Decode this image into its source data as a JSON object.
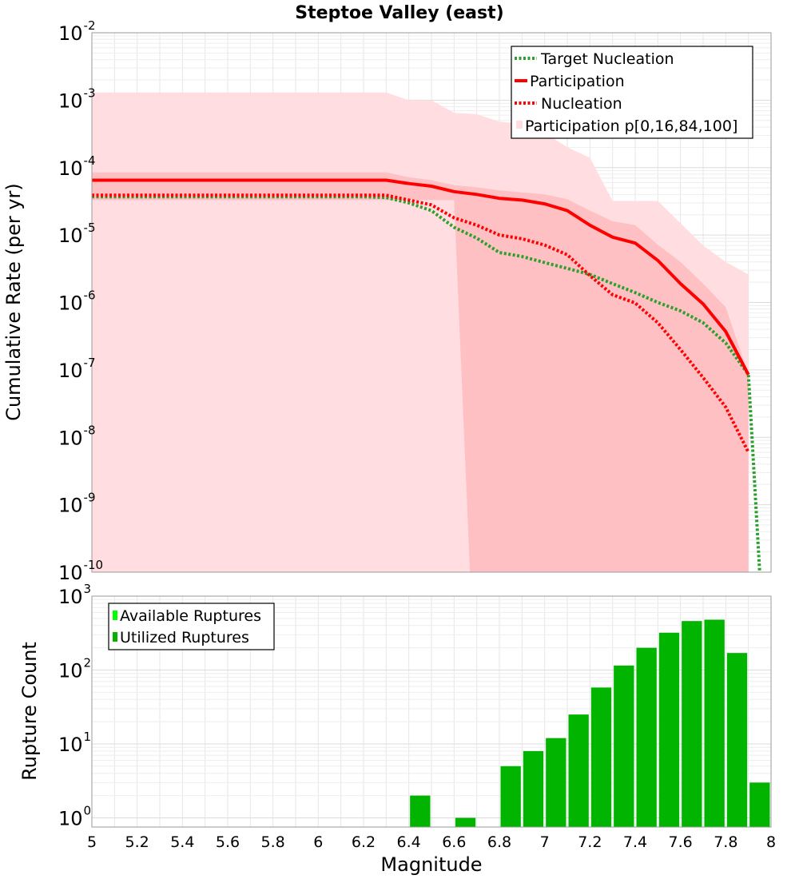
{
  "colors": {
    "target_nucleation": "#2ca02c",
    "participation": "#ff0000",
    "nucleation": "#ff0000",
    "band_outer": "#ffdde0",
    "band_inner": "#ffc0c4",
    "available_ruptures": "#00ff00",
    "utilized_ruptures": "#00b400",
    "grid": "#e6e6e6"
  },
  "chart_data": [
    {
      "type": "line",
      "title": "Steptoe Valley (east)",
      "xlabel": "",
      "ylabel": "Cumulative Rate (per yr)",
      "xlim": [
        5,
        8
      ],
      "ylim": [
        1e-10,
        0.01
      ],
      "yscale": "log",
      "grid": true,
      "legend_position": "top-right",
      "ytick_labels": [
        {
          "base": "10",
          "exp": "-10",
          "value": 1e-10
        },
        {
          "base": "10",
          "exp": "-9",
          "value": 1e-09
        },
        {
          "base": "10",
          "exp": "-8",
          "value": 1e-08
        },
        {
          "base": "10",
          "exp": "-7",
          "value": 1e-07
        },
        {
          "base": "10",
          "exp": "-6",
          "value": 1e-06
        },
        {
          "base": "10",
          "exp": "-5",
          "value": 1e-05
        },
        {
          "base": "10",
          "exp": "-4",
          "value": 0.0001
        },
        {
          "base": "10",
          "exp": "-3",
          "value": 0.001
        },
        {
          "base": "10",
          "exp": "-2",
          "value": 0.01
        }
      ],
      "series": [
        {
          "name": "Target Nucleation",
          "style": "dotted",
          "color_key": "target_nucleation",
          "x": [
            5.0,
            5.1,
            5.2,
            5.3,
            5.4,
            5.5,
            5.6,
            5.7,
            5.8,
            5.9,
            6.0,
            6.1,
            6.2,
            6.3,
            6.4,
            6.5,
            6.6,
            6.7,
            6.8,
            6.9,
            7.0,
            7.1,
            7.2,
            7.3,
            7.4,
            7.5,
            7.6,
            7.7,
            7.8,
            7.9,
            7.95
          ],
          "y": [
            3.7e-05,
            3.7e-05,
            3.7e-05,
            3.7e-05,
            3.7e-05,
            3.7e-05,
            3.7e-05,
            3.7e-05,
            3.7e-05,
            3.7e-05,
            3.7e-05,
            3.7e-05,
            3.7e-05,
            3.6e-05,
            3e-05,
            2.3e-05,
            1.3e-05,
            9e-06,
            5.5e-06,
            4.8e-06,
            3.9e-06,
            3.2e-06,
            2.6e-06,
            1.9e-06,
            1.4e-06,
            1e-06,
            7.5e-07,
            5e-07,
            2.5e-07,
            8.5e-08,
            1e-10
          ]
        },
        {
          "name": "Participation",
          "style": "solid",
          "color_key": "participation",
          "x": [
            5.0,
            5.1,
            5.2,
            5.3,
            5.4,
            5.5,
            5.6,
            5.7,
            5.8,
            5.9,
            6.0,
            6.1,
            6.2,
            6.3,
            6.4,
            6.5,
            6.6,
            6.7,
            6.8,
            6.9,
            7.0,
            7.1,
            7.2,
            7.3,
            7.4,
            7.5,
            7.6,
            7.7,
            7.8,
            7.9
          ],
          "y": [
            6.5e-05,
            6.5e-05,
            6.5e-05,
            6.5e-05,
            6.5e-05,
            6.5e-05,
            6.5e-05,
            6.5e-05,
            6.5e-05,
            6.5e-05,
            6.5e-05,
            6.5e-05,
            6.5e-05,
            6.5e-05,
            5.8e-05,
            5.3e-05,
            4.4e-05,
            4e-05,
            3.5e-05,
            3.3e-05,
            2.9e-05,
            2.3e-05,
            1.4e-05,
            9.3e-06,
            7.6e-06,
            4.2e-06,
            1.9e-06,
            9.5e-07,
            3.7e-07,
            8.5e-08
          ]
        },
        {
          "name": "Nucleation",
          "style": "dotted",
          "color_key": "nucleation",
          "x": [
            5.0,
            5.1,
            5.2,
            5.3,
            5.4,
            5.5,
            5.6,
            5.7,
            5.8,
            5.9,
            6.0,
            6.1,
            6.2,
            6.3,
            6.4,
            6.5,
            6.6,
            6.7,
            6.8,
            6.9,
            7.0,
            7.1,
            7.2,
            7.3,
            7.4,
            7.5,
            7.6,
            7.7,
            7.8,
            7.9
          ],
          "y": [
            3.9e-05,
            3.9e-05,
            3.9e-05,
            3.9e-05,
            3.9e-05,
            3.9e-05,
            3.9e-05,
            3.9e-05,
            3.9e-05,
            3.9e-05,
            3.9e-05,
            3.9e-05,
            3.9e-05,
            3.9e-05,
            3.3e-05,
            2.8e-05,
            1.8e-05,
            1.4e-05,
            1e-05,
            8.8e-06,
            7.1e-06,
            5.1e-06,
            2.5e-06,
            1.3e-06,
            9.8e-07,
            5e-07,
            2e-07,
            7.7e-08,
            2.8e-08,
            6e-09
          ]
        }
      ],
      "bands": [
        {
          "name": "Participation p[0,16,84,100]",
          "level": "p0-p100",
          "color_key": "band_outer",
          "x": [
            5.0,
            6.3,
            6.4,
            6.5,
            6.6,
            6.7,
            6.8,
            6.9,
            7.0,
            7.1,
            7.2,
            7.3,
            7.4,
            7.5,
            7.6,
            7.7,
            7.8,
            7.9
          ],
          "upper": [
            0.0013,
            0.0013,
            0.001,
            0.001,
            0.00065,
            0.00062,
            0.00048,
            0.00045,
            0.00033,
            0.0002,
            0.00014,
            3.2e-05,
            3.2e-05,
            3.2e-05,
            1.5e-05,
            7e-06,
            4e-06,
            2.6e-06
          ],
          "lower": [
            1e-10,
            1e-10,
            1e-10,
            1e-10,
            1e-10,
            1e-10,
            1e-10,
            1e-10,
            1e-10,
            1e-10,
            1e-10,
            1e-10,
            1e-10,
            1e-10,
            1e-10,
            1e-10,
            1e-10,
            1e-10
          ]
        },
        {
          "name": "Participation p[0,16,84,100]",
          "level": "p16-p84",
          "color_key": "band_inner",
          "x": [
            5.0,
            6.3,
            6.4,
            6.5,
            6.6,
            6.7,
            6.8,
            6.9,
            7.0,
            7.1,
            7.2,
            7.3,
            7.4,
            7.5,
            7.6,
            7.7,
            7.8,
            7.9
          ],
          "upper": [
            8.5e-05,
            8.5e-05,
            7.2e-05,
            6.5e-05,
            5.5e-05,
            5.1e-05,
            4.6e-05,
            4.3e-05,
            4e-05,
            3.4e-05,
            2.3e-05,
            1.6e-05,
            1.4e-05,
            7.2e-06,
            4e-06,
            1.9e-06,
            8.5e-07,
            8.5e-08
          ],
          "lower": [
            3.3e-05,
            3.3e-05,
            3.3e-05,
            3.3e-05,
            1e-10,
            1e-10,
            1e-10,
            1e-10,
            1e-10,
            1e-10,
            1e-10,
            1e-10,
            1e-10,
            1e-10,
            1e-10,
            1e-10,
            1e-10,
            1e-10
          ],
          "lower_drop_x": [
            6.6,
            6.67
          ]
        }
      ],
      "legend": [
        "Target Nucleation",
        "Participation",
        "Nucleation",
        "Participation p[0,16,84,100]"
      ]
    },
    {
      "type": "bar",
      "title": "",
      "xlabel": "Magnitude",
      "ylabel": "Rupture Count",
      "xlim": [
        5,
        8
      ],
      "ylim": [
        0.75,
        1000
      ],
      "yscale": "log",
      "grid": true,
      "legend_position": "top-left",
      "bin_width": 0.1,
      "xtick_labels": [
        "5",
        "5.2",
        "5.4",
        "5.6",
        "5.8",
        "6",
        "6.2",
        "6.4",
        "6.6",
        "6.8",
        "7",
        "7.2",
        "7.4",
        "7.6",
        "7.8",
        "8"
      ],
      "xtick_values": [
        5.0,
        5.2,
        5.4,
        5.6,
        5.8,
        6.0,
        6.2,
        6.4,
        6.6,
        6.8,
        7.0,
        7.2,
        7.4,
        7.6,
        7.8,
        8.0
      ],
      "ytick_labels": [
        {
          "base": "10",
          "exp": "0",
          "value": 1
        },
        {
          "base": "10",
          "exp": "1",
          "value": 10
        },
        {
          "base": "10",
          "exp": "2",
          "value": 100
        },
        {
          "base": "10",
          "exp": "3",
          "value": 1000
        }
      ],
      "bar_centers": [
        6.45,
        6.65,
        6.85,
        6.95,
        7.05,
        7.15,
        7.25,
        7.35,
        7.45,
        7.55,
        7.65,
        7.75,
        7.85,
        7.95
      ],
      "series": [
        {
          "name": "Available Ruptures",
          "color_key": "available_ruptures",
          "values": [
            2,
            1,
            5,
            8,
            12,
            25,
            58,
            115,
            200,
            320,
            460,
            480,
            170,
            3
          ]
        },
        {
          "name": "Utilized Ruptures",
          "color_key": "utilized_ruptures",
          "values": [
            2,
            1,
            5,
            8,
            12,
            25,
            58,
            115,
            200,
            320,
            460,
            480,
            170,
            3
          ]
        }
      ],
      "legend": [
        "Available Ruptures",
        "Utilized Ruptures"
      ]
    }
  ]
}
